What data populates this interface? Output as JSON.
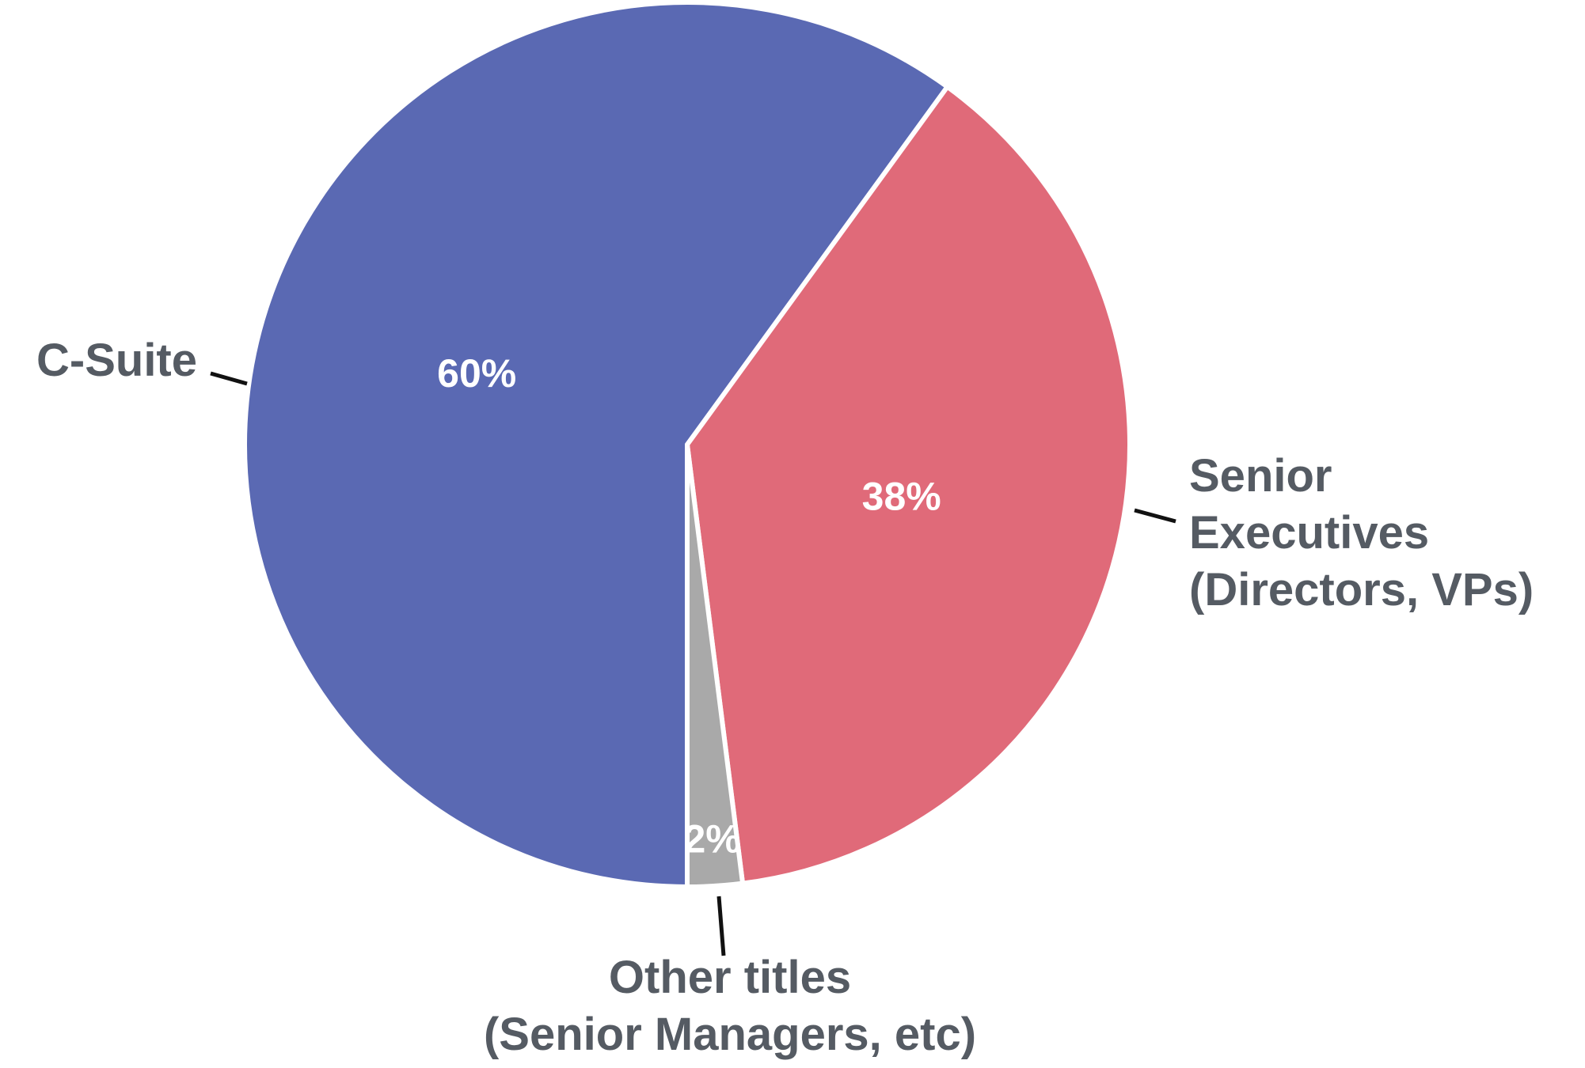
{
  "chart_data": {
    "type": "pie",
    "categories": [
      "C-Suite",
      "Senior\nExecutives\n(Directors, VPs)",
      "Other titles\n(Senior Managers, etc)"
    ],
    "values": [
      60,
      38,
      2
    ],
    "value_labels": [
      "60%",
      "38%",
      "2%"
    ],
    "colors": [
      "#5a69b3",
      "#e06a79",
      "#a9a9a9"
    ]
  }
}
